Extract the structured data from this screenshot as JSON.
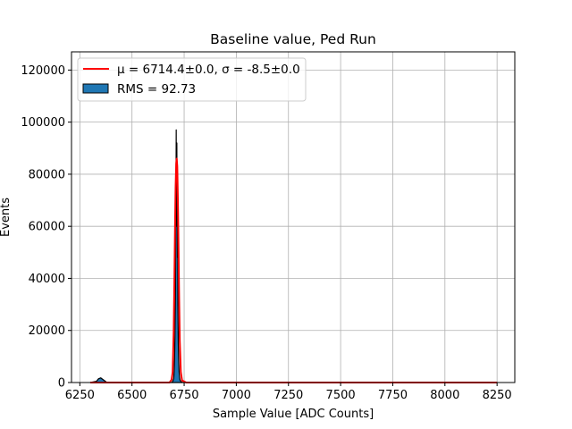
{
  "chart_data": {
    "type": "histogram",
    "title": "Baseline value, Ped Run",
    "xlabel": "Sample Value [ADC Counts]",
    "ylabel": "Events",
    "xlim": [
      6210,
      8335
    ],
    "ylim": [
      0,
      127000
    ],
    "xticks": [
      6250,
      6500,
      6750,
      7000,
      7250,
      7500,
      7750,
      8000,
      8250
    ],
    "yticks": [
      0,
      20000,
      40000,
      60000,
      80000,
      100000,
      120000
    ],
    "grid": true,
    "legend_position": "top-left",
    "legend": [
      {
        "label": "μ = 6714.4±0.0, σ = -8.5±0.0",
        "type": "line",
        "color": "#ff0000"
      },
      {
        "label": "RMS = 92.73",
        "type": "patch",
        "color": "#1f77b4"
      }
    ],
    "series": [
      {
        "name": "RMS = 92.73",
        "kind": "histogram",
        "color": "#1f77b4",
        "edgecolor": "#000000",
        "x": [
          6300,
          6330,
          6340,
          6350,
          6360,
          6370,
          6380,
          6690,
          6695,
          6700,
          6702,
          6704,
          6706,
          6708,
          6710,
          6711,
          6712,
          6713,
          6714,
          6715,
          6716,
          6717,
          6718,
          6719,
          6720,
          6722,
          6724,
          6726,
          6728,
          6730,
          6735,
          6740,
          6750,
          8250
        ],
        "values": [
          0,
          500,
          1500,
          1800,
          1200,
          600,
          0,
          0,
          400,
          1500,
          4000,
          9000,
          18000,
          32000,
          55000,
          78000,
          97000,
          60000,
          88000,
          92000,
          70000,
          82000,
          48000,
          67000,
          30000,
          15000,
          8000,
          4000,
          2000,
          1000,
          300,
          100,
          0,
          0
        ]
      },
      {
        "name": "μ = 6714.4±0.0, σ = -8.5±0.0",
        "kind": "gaussian_fit",
        "color": "#ff0000",
        "x": [
          6300,
          6680,
          6690,
          6695,
          6700,
          6703,
          6706,
          6709,
          6712,
          6714.4,
          6717,
          6720,
          6723,
          6726,
          6729,
          6734,
          6740,
          6760,
          8250
        ],
        "values": [
          0,
          0,
          1100,
          4000,
          20000,
          38000,
          58000,
          75000,
          84000,
          86000,
          83000,
          70000,
          52000,
          32000,
          16000,
          4000,
          800,
          0,
          0
        ]
      }
    ]
  }
}
